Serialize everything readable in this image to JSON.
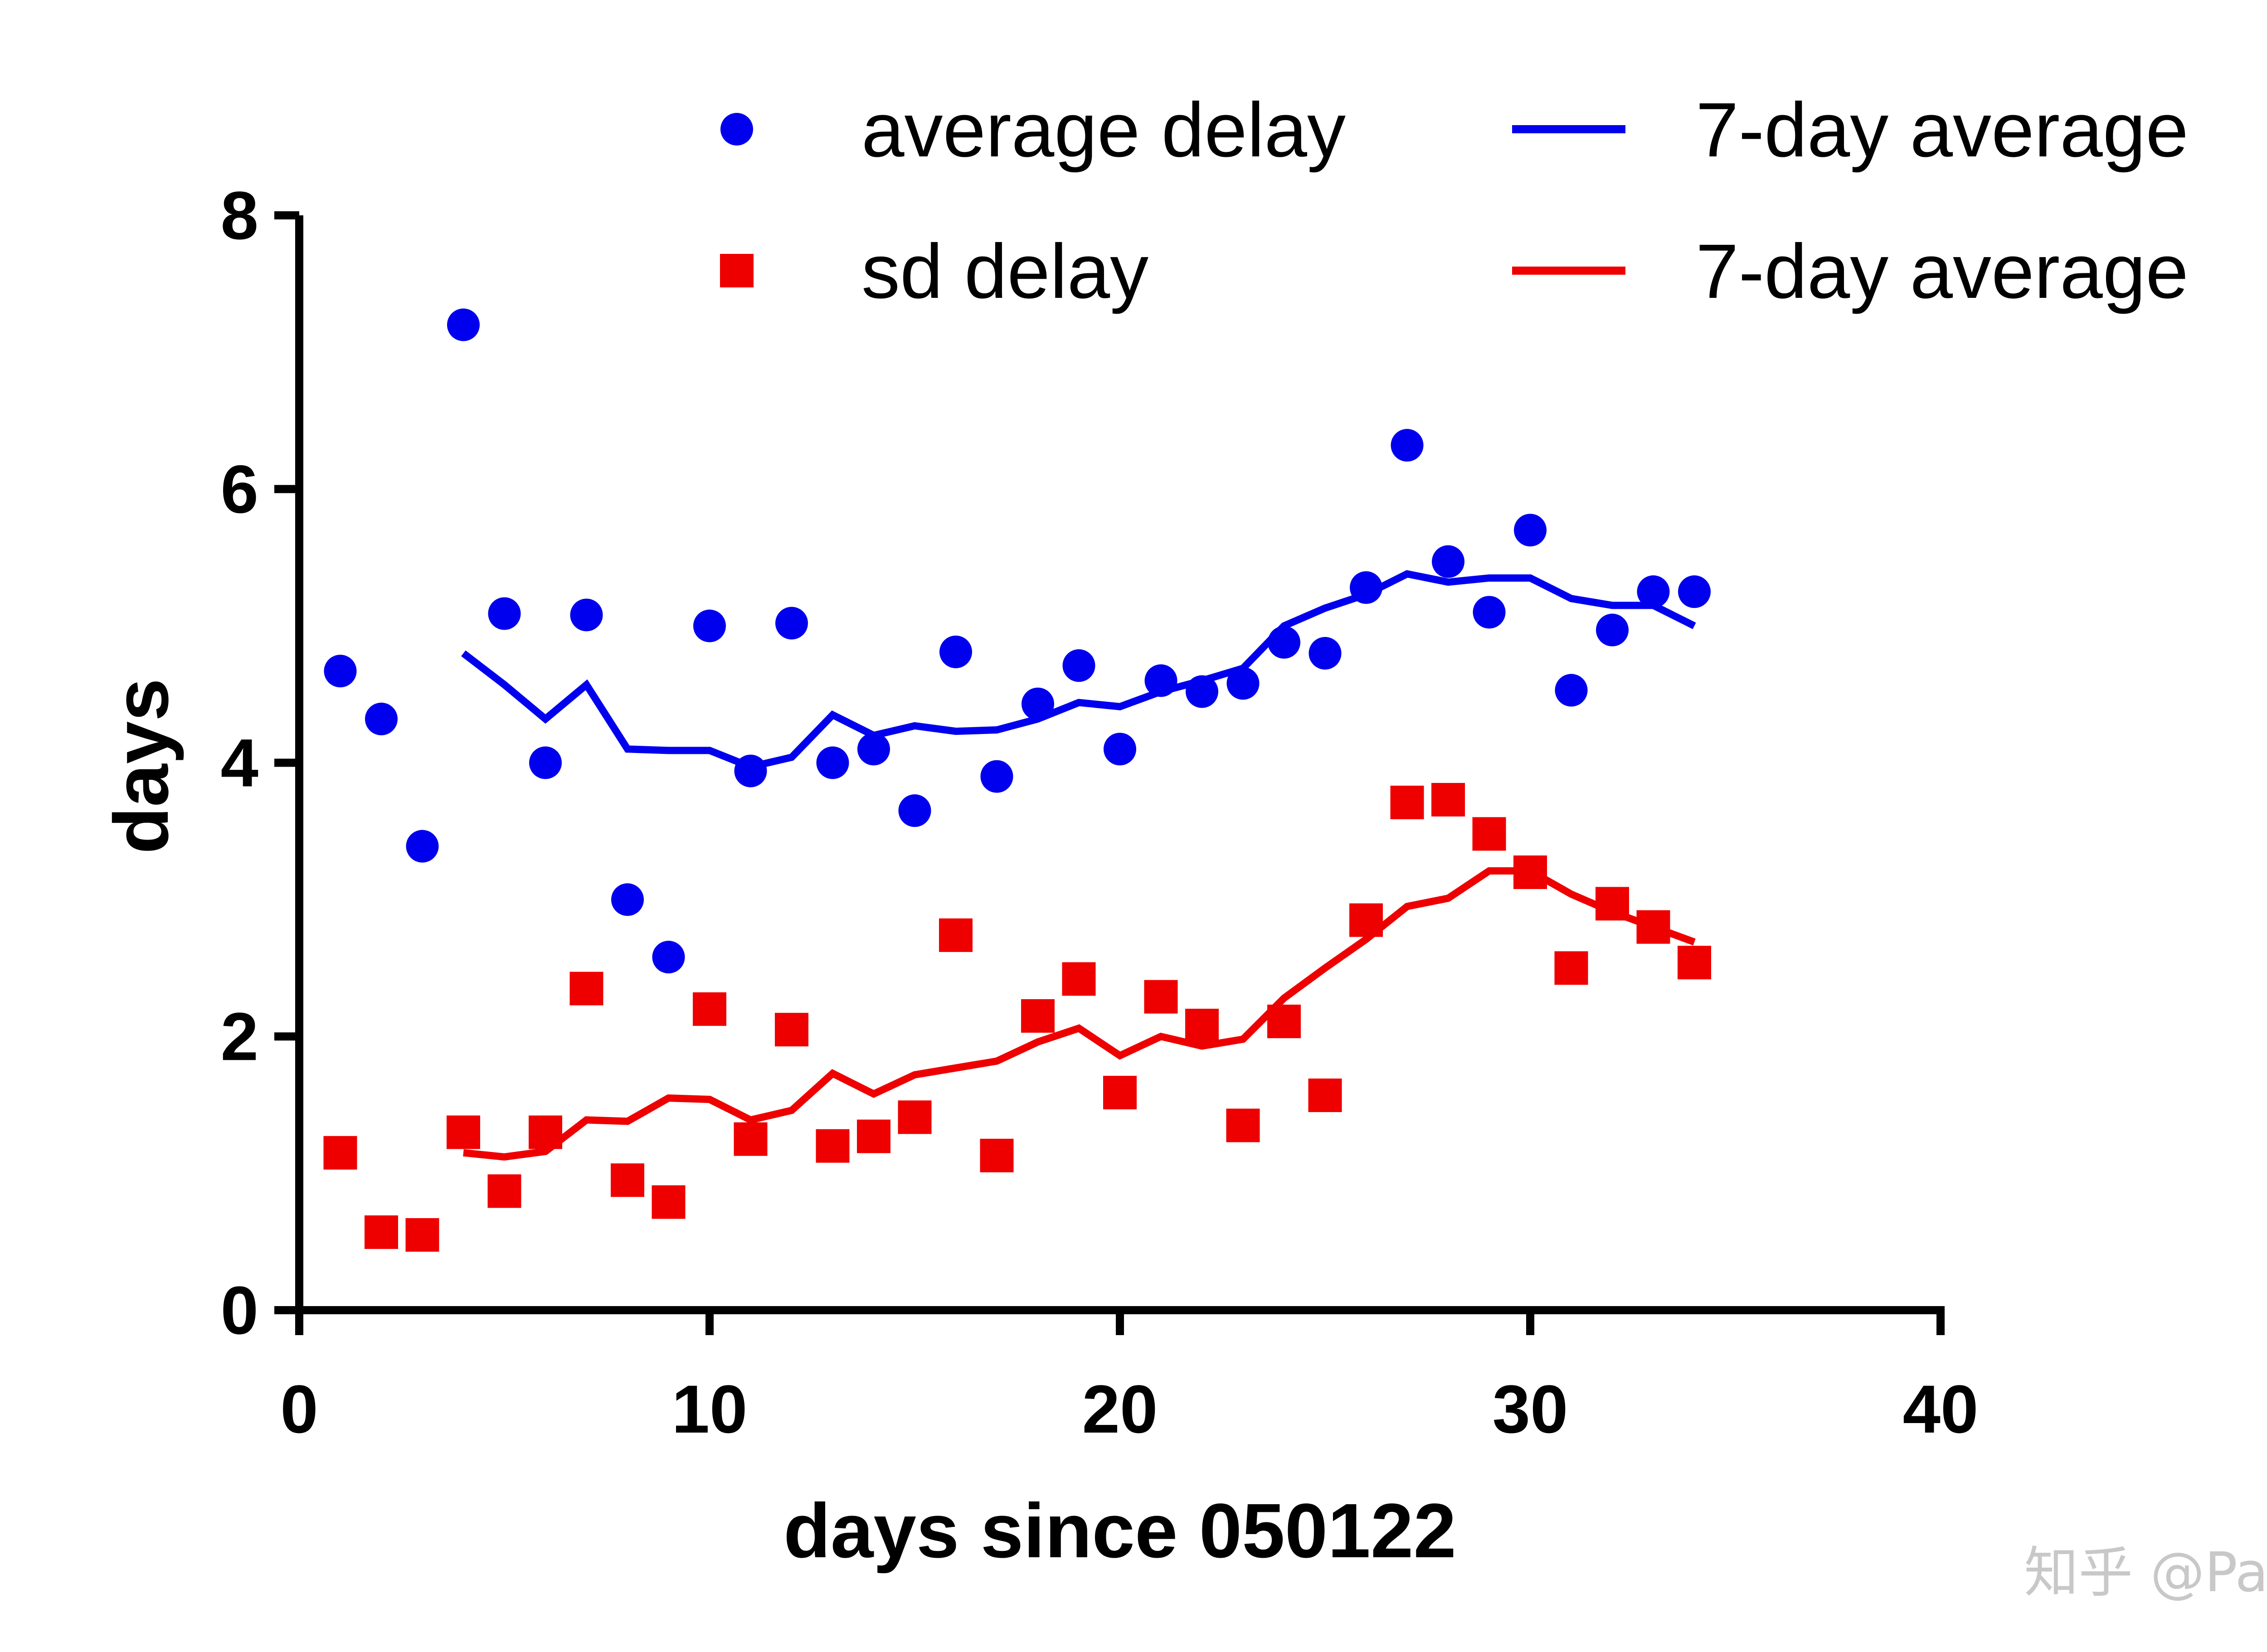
{
  "chart_data": {
    "type": "scatter",
    "xlabel": "days since 050122",
    "ylabel": "days",
    "xlim": [
      0,
      40
    ],
    "ylim": [
      0,
      8
    ],
    "xticks": [
      "0",
      "10",
      "20",
      "30",
      "40"
    ],
    "yticks": [
      "0",
      "2",
      "4",
      "6",
      "8"
    ],
    "grid": false,
    "legend_position": "top",
    "series": [
      {
        "name": "average delay",
        "kind": "points",
        "marker": "circle",
        "color": "#0000ee",
        "x": [
          1,
          2,
          3,
          4,
          5,
          6,
          7,
          8,
          9,
          10,
          11,
          12,
          13,
          14,
          15,
          16,
          17,
          18,
          19,
          20,
          21,
          22,
          23,
          24,
          25,
          26,
          27,
          28,
          29,
          30,
          31,
          32,
          33,
          34
        ],
        "y": [
          4.67,
          4.32,
          3.39,
          7.2,
          5.09,
          4.0,
          5.08,
          3.0,
          2.58,
          5.0,
          3.94,
          5.02,
          4.0,
          4.1,
          3.65,
          4.81,
          3.9,
          4.43,
          4.71,
          4.1,
          4.6,
          4.52,
          4.58,
          4.88,
          4.8,
          5.28,
          6.32,
          5.47,
          5.1,
          5.7,
          4.53,
          4.97,
          5.25,
          5.25
        ]
      },
      {
        "name": "7-day average",
        "kind": "line",
        "color": "#0000ee",
        "x": [
          4,
          5,
          6,
          7,
          8,
          9,
          10,
          11,
          12,
          13,
          14,
          15,
          16,
          17,
          18,
          19,
          20,
          21,
          22,
          23,
          24,
          25,
          26,
          27,
          28,
          29,
          30,
          31,
          32,
          33,
          34
        ],
        "y": [
          4.8,
          4.57,
          4.32,
          4.57,
          4.1,
          4.09,
          4.09,
          3.97,
          4.04,
          4.35,
          4.2,
          4.27,
          4.23,
          4.24,
          4.32,
          4.44,
          4.41,
          4.52,
          4.6,
          4.69,
          5.0,
          5.13,
          5.23,
          5.38,
          5.32,
          5.35,
          5.35,
          5.2,
          5.15,
          5.15,
          5.0
        ]
      },
      {
        "name": "sd delay",
        "kind": "points",
        "marker": "square",
        "color": "#ee0000",
        "x": [
          1,
          2,
          3,
          4,
          5,
          6,
          7,
          8,
          9,
          10,
          11,
          12,
          13,
          14,
          15,
          16,
          17,
          18,
          19,
          20,
          21,
          22,
          23,
          24,
          25,
          26,
          27,
          28,
          29,
          30,
          31,
          32,
          33,
          34
        ],
        "y": [
          1.15,
          0.57,
          0.55,
          1.3,
          0.87,
          1.3,
          2.35,
          0.95,
          0.79,
          2.2,
          1.25,
          2.05,
          1.2,
          1.27,
          1.41,
          2.74,
          1.13,
          2.15,
          2.42,
          1.59,
          2.29,
          2.08,
          1.35,
          2.11,
          1.57,
          2.85,
          3.71,
          3.73,
          3.48,
          3.2,
          2.5,
          2.97,
          2.8,
          2.54
        ]
      },
      {
        "name": "7-day average",
        "kind": "line",
        "color": "#ee0000",
        "x": [
          4,
          5,
          6,
          7,
          8,
          9,
          10,
          11,
          12,
          13,
          14,
          15,
          16,
          17,
          18,
          19,
          20,
          21,
          22,
          23,
          24,
          25,
          26,
          27,
          28,
          29,
          30,
          31,
          32,
          33,
          34
        ],
        "y": [
          1.15,
          1.12,
          1.16,
          1.39,
          1.38,
          1.55,
          1.54,
          1.39,
          1.46,
          1.73,
          1.58,
          1.72,
          1.77,
          1.82,
          1.96,
          2.06,
          1.86,
          2.0,
          1.93,
          1.98,
          2.28,
          2.5,
          2.71,
          2.95,
          3.01,
          3.21,
          3.21,
          3.04,
          2.91,
          2.8,
          2.69
        ]
      }
    ]
  },
  "legend": [
    {
      "label": "average delay",
      "marker": "circle",
      "color": "#0000ee"
    },
    {
      "label": "7-day average",
      "marker": "line",
      "color": "#0000ee"
    },
    {
      "label": "sd delay",
      "marker": "square",
      "color": "#ee0000"
    },
    {
      "label": "7-day average",
      "marker": "line",
      "color": "#ee0000"
    }
  ],
  "watermark": "知乎 @Pat"
}
